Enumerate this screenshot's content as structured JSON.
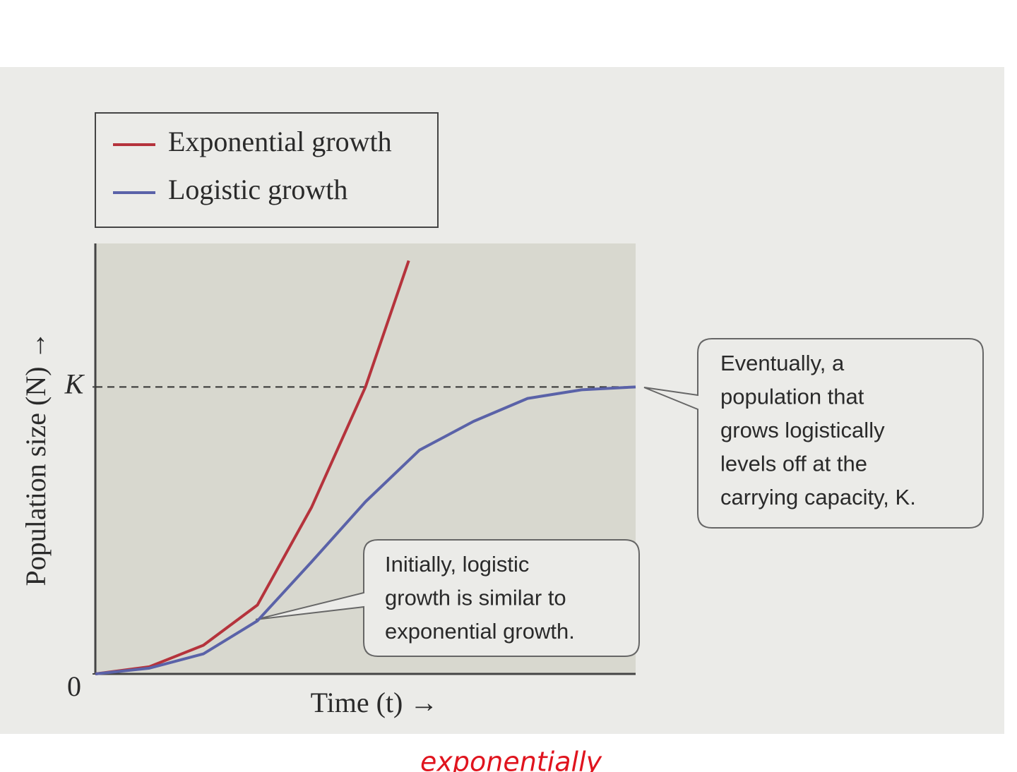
{
  "chart_data": {
    "type": "line",
    "xlabel": "Time (t) →",
    "ylabel": "Population size (N) →",
    "xlim": [
      0,
      10
    ],
    "ylim": [
      0,
      1.5
    ],
    "yticks": [
      0,
      {
        "value": 1,
        "label": "K"
      }
    ],
    "reference_line": {
      "y": 1,
      "style": "dashed"
    },
    "legend": "top-left",
    "series": [
      {
        "name": "Exponential growth",
        "color": "#b5333c",
        "x": [
          0,
          1,
          2,
          3,
          4,
          5,
          5.8
        ],
        "values": [
          0,
          0.025,
          0.1,
          0.24,
          0.58,
          1.0,
          1.44
        ]
      },
      {
        "name": "Logistic growth",
        "color": "#5a62a8",
        "x": [
          0,
          1,
          2,
          3,
          4,
          5,
          6,
          7,
          8,
          9,
          10
        ],
        "values": [
          0,
          0.02,
          0.07,
          0.185,
          0.39,
          0.6,
          0.78,
          0.88,
          0.96,
          0.99,
          1.0
        ]
      }
    ],
    "annotations": [
      {
        "lines": [
          "Eventually, a",
          "population that",
          "grows logistically",
          "levels off at the",
          "carrying capacity, K."
        ]
      },
      {
        "lines": [
          "Initially, logistic",
          "growth is similar to",
          "exponential growth."
        ]
      }
    ],
    "note": "exponentially"
  }
}
